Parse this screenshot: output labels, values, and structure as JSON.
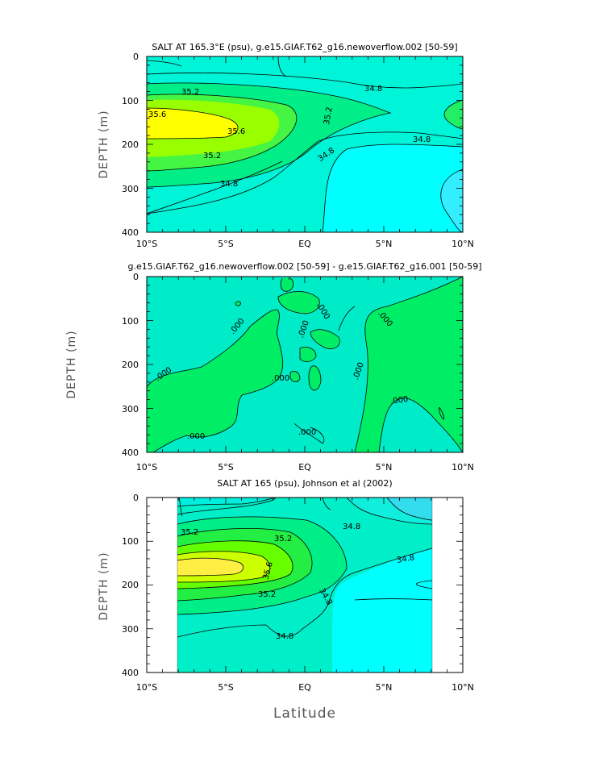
{
  "figure": {
    "xlabel": "Latitude"
  },
  "chart_data": [
    {
      "type": "heatmap",
      "title": "SALT AT 165.3°E (psu), g.e15.GIAF.T62_g16.newoverflow.002 ​[50-59]",
      "xlabel": "",
      "ylabel": "DEPTH (m)",
      "x_ticks": [
        "10°S",
        "5°S",
        "EQ",
        "5°N",
        "10°N"
      ],
      "x_values": [
        -10,
        -5,
        0,
        5,
        10
      ],
      "y_ticks": [
        "0",
        "100",
        "200",
        "300",
        "400"
      ],
      "y_values": [
        0,
        100,
        200,
        300,
        400
      ],
      "xlim": [
        -10,
        10
      ],
      "ylim": [
        400,
        0
      ],
      "contour_labels": [
        "35.2",
        "35.6",
        "35.6",
        "35.2",
        "34.8",
        "35.2",
        "34.8",
        "34.8",
        "34.8"
      ],
      "colors": [
        "#00ffff",
        "#00f5dd",
        "#00ee88",
        "#66ff00",
        "#ffff00"
      ]
    },
    {
      "type": "heatmap",
      "title": "g.e15.GIAF.T62_g16.newoverflow.002 [50-59] - g.e15.GIAF.T62_g16.001 [50-59]",
      "xlabel": "",
      "ylabel": "DEPTH (m)",
      "x_ticks": [
        "10°S",
        "5°S",
        "EQ",
        "5°N",
        "10°N"
      ],
      "x_values": [
        -10,
        -5,
        0,
        5,
        10
      ],
      "y_ticks": [
        "0",
        "100",
        "200",
        "300",
        "400"
      ],
      "y_values": [
        0,
        100,
        200,
        300,
        400
      ],
      "xlim": [
        -10,
        10
      ],
      "ylim": [
        400,
        0
      ],
      "contour_labels": [
        ".000",
        ".000",
        ".000",
        ".000",
        ".000",
        ".000",
        ".000",
        ".000",
        ".000"
      ],
      "colors": [
        "#00eecc",
        "#00ee66"
      ]
    },
    {
      "type": "heatmap",
      "title": "SALT AT 165 (psu), Johnson et al (2002)",
      "xlabel": "Latitude",
      "ylabel": "DEPTH (m)",
      "x_ticks": [
        "10°S",
        "5°S",
        "EQ",
        "5°N",
        "10°N"
      ],
      "x_values": [
        -10,
        -5,
        0,
        5,
        10
      ],
      "y_ticks": [
        "0",
        "100",
        "200",
        "300",
        "400"
      ],
      "y_values": [
        0,
        100,
        200,
        300,
        400
      ],
      "xlim": [
        -10,
        10
      ],
      "ylim": [
        400,
        0
      ],
      "data_xrange": [
        -8,
        8
      ],
      "contour_labels": [
        "35.2",
        "35.2",
        "34.8",
        "35.6",
        "35.2",
        "34.8",
        "34.8",
        "34.8"
      ],
      "colors": [
        "#00eecc",
        "#00ee88",
        "#66ff00",
        "#ffee44",
        "#00ffff"
      ]
    }
  ]
}
